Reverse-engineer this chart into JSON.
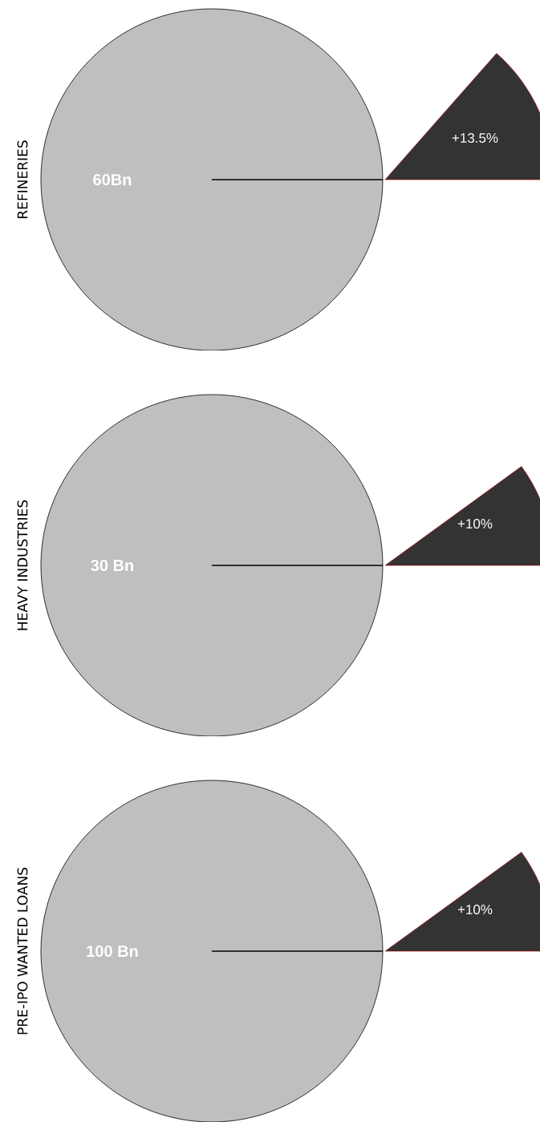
{
  "chart_data": [
    {
      "type": "other",
      "ylabel": "REFINERIES",
      "annotations": [
        "60Bn"
      ],
      "categories": [
        null
      ],
      "values": [
        13.5
      ],
      "value_labels": [
        "+13.5%"
      ],
      "colors": [
        "#333333"
      ]
    },
    {
      "type": "other",
      "ylabel": "HEAVY INDUSTRIES",
      "annotations": [
        "30 Bn"
      ],
      "categories": [
        null
      ],
      "values": [
        10
      ],
      "value_labels": [
        "+10%"
      ],
      "colors": [
        "#333333"
      ]
    },
    {
      "type": "other",
      "ylabel": "PRE-IPO WANTED LOANS",
      "annotations": [
        "100 Bn"
      ],
      "categories": [
        null
      ],
      "values": [
        10
      ],
      "value_labels": [
        "+10%"
      ],
      "colors": [
        "#333333"
      ]
    }
  ]
}
